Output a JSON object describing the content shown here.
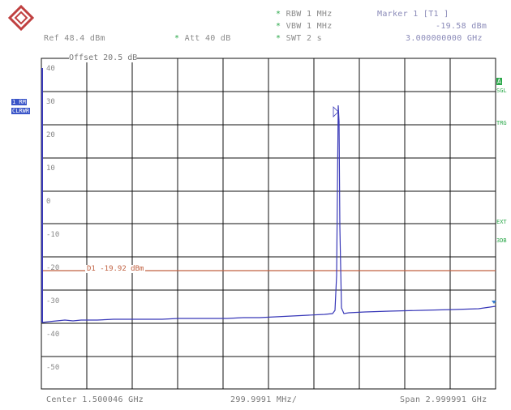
{
  "header": {
    "rbw": "RBW 1 MHz",
    "vbw": "VBW 1 MHz",
    "swt": "SWT 2 s",
    "ref": "Ref 48.4 dBm",
    "att": "Att 40 dB",
    "marker_title": "Marker 1 [T1 ]",
    "marker_level": "-19.58 dBm",
    "marker_freq": "3.000000000 GHz"
  },
  "left_labels": {
    "trace_mode": "1 RM",
    "trace_type": "CLRWR"
  },
  "right_labels": {
    "a": "A",
    "sgl": "SGL",
    "trg": "TRG",
    "exd": "EXT",
    "three_db": "3DB"
  },
  "grid": {
    "offset_text": "Offset 20.5 dB",
    "y_ticks": [
      "40",
      "30",
      "20",
      "10",
      "0",
      "-10",
      "-20",
      "-30",
      "-40",
      "-50"
    ]
  },
  "display_line": {
    "label": "D1 -19.92 dBm",
    "color": "#c06040"
  },
  "footer": {
    "center": "Center 1.500046 GHz",
    "div": "299.9991 MHz/",
    "span": "Span 2.999991 GHz"
  },
  "colors": {
    "trace": "#3838b8",
    "grid": "#000000",
    "accent_green": "#2ba84a"
  },
  "icons": {
    "logo": "rohde-schwarz-logo-icon"
  }
}
